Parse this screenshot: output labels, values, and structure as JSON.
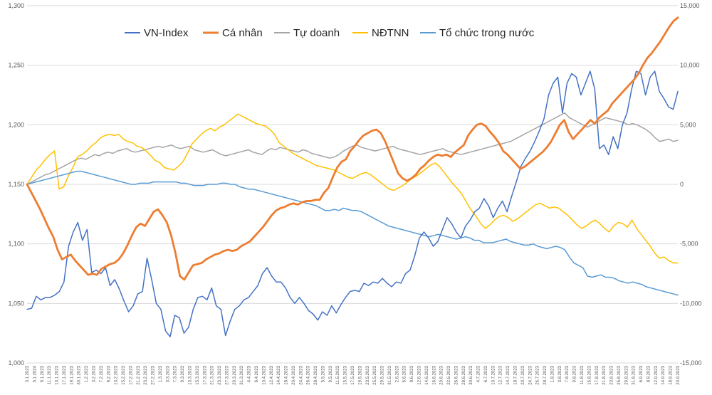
{
  "chart_data": {
    "type": "line",
    "left_axis": {
      "min": 1000,
      "max": 1300,
      "step": 50,
      "ticks": [
        "1,000",
        "1,050",
        "1,100",
        "1,150",
        "1,200",
        "1,250",
        "1,300"
      ]
    },
    "right_axis": {
      "min": -15000,
      "max": 15000,
      "step": 5000,
      "ticks": [
        "-15,000",
        "-10,000",
        "-5,000",
        "0",
        "5,000",
        "10,000",
        "15,000"
      ]
    },
    "grid": "horizontal",
    "legend_position": "top",
    "x_labels": [
      "3.1.2023",
      "5.1.2024",
      "9.1.2023",
      "11.1.2023",
      "13.1.2023",
      "17.1.2023",
      "19.1.2023",
      "30.1.2023",
      "1.2.2023",
      "3.2.2023",
      "7.2.2023",
      "9.2.2023",
      "13.2.2023",
      "15.2.2023",
      "17.2.2023",
      "21.2.2023",
      "23.2.2023",
      "27.2.2023",
      "1.3.2023",
      "3.3.2023",
      "7.3.2023",
      "9.3.2023",
      "13.3.2023",
      "15.3.2023",
      "17.3.2023",
      "21.3.2023",
      "23.3.2023",
      "27.3.2023",
      "29.3.2023",
      "31.3.2023",
      "4.4.2023",
      "6.4.2023",
      "10.4.2023",
      "12.4.2023",
      "14.4.2023",
      "18.4.2023",
      "20.4.2023",
      "24.4.2023",
      "26.4.2023",
      "28.4.2023",
      "5.5.2023",
      "9.5.2023",
      "11.5.2023",
      "15.5.2023",
      "17.5.2023",
      "19.5.2023",
      "23.5.2023",
      "25.5.2023",
      "29.5.2023",
      "31.5.2023",
      "2.6.2023",
      "6.6.2023",
      "8.6.2023",
      "12.6.2023",
      "14.6.2023",
      "16.6.2023",
      "20.6.2023",
      "22.6.2023",
      "26.6.2023",
      "28.6.2023",
      "30.6.2023",
      "4.7.2023",
      "6.7.2023",
      "10.7.2023",
      "12.7.2023",
      "14.7.2023",
      "18.7.2023",
      "20.7.2023",
      "24.7.2023",
      "26.7.2023",
      "28.7.2023",
      "1.8.2023",
      "3.8.2023",
      "7.8.2023",
      "9.8.2023",
      "11.8.2023",
      "15.8.2023",
      "17.8.2023",
      "21.8.2023",
      "23.8.2023",
      "25.8.2023",
      "29.8.2023",
      "31.8.2023",
      "6.9.2023",
      "8.9.2023",
      "12.9.2023",
      "14.9.2023",
      "18.9.2023",
      "20.9.2023"
    ],
    "series": [
      {
        "name": "VN-Index",
        "axis": "left",
        "color": "#4472c4",
        "width": 1.5,
        "values": [
          1045,
          1046,
          1056,
          1053,
          1055,
          1055,
          1057,
          1060,
          1068,
          1098,
          1110,
          1118,
          1103,
          1112,
          1076,
          1078,
          1075,
          1080,
          1065,
          1070,
          1062,
          1052,
          1043,
          1048,
          1058,
          1060,
          1088,
          1070,
          1050,
          1045,
          1027,
          1022,
          1040,
          1038,
          1025,
          1030,
          1045,
          1055,
          1056,
          1053,
          1063,
          1048,
          1045,
          1023,
          1035,
          1045,
          1048,
          1053,
          1055,
          1060,
          1065,
          1075,
          1080,
          1073,
          1068,
          1068,
          1063,
          1055,
          1050,
          1055,
          1050,
          1044,
          1041,
          1036,
          1043,
          1040,
          1048,
          1042,
          1049,
          1055,
          1060,
          1061,
          1060,
          1067,
          1065,
          1068,
          1067,
          1071,
          1067,
          1064,
          1068,
          1067,
          1075,
          1078,
          1090,
          1105,
          1110,
          1105,
          1098,
          1102,
          1112,
          1122,
          1117,
          1110,
          1105,
          1115,
          1120,
          1127,
          1130,
          1138,
          1132,
          1122,
          1130,
          1136,
          1127,
          1140,
          1152,
          1165,
          1172,
          1178,
          1186,
          1195,
          1205,
          1225,
          1235,
          1240,
          1210,
          1235,
          1243,
          1240,
          1225,
          1235,
          1245,
          1230,
          1180,
          1183,
          1175,
          1190,
          1180,
          1200,
          1210,
          1230,
          1245,
          1243,
          1225,
          1240,
          1245,
          1228,
          1222,
          1215,
          1213,
          1228
        ]
      },
      {
        "name": "Cá nhân",
        "axis": "right",
        "color": "#ed7d31",
        "width": 2.8,
        "values": [
          0,
          -700,
          -1400,
          -2100,
          -2900,
          -3700,
          -4400,
          -5500,
          -6300,
          -6100,
          -5900,
          -6400,
          -6800,
          -7200,
          -7600,
          -7500,
          -7600,
          -7100,
          -6900,
          -6700,
          -6600,
          -6300,
          -5800,
          -5100,
          -4300,
          -3600,
          -3300,
          -3500,
          -2900,
          -2300,
          -2100,
          -2600,
          -3200,
          -4300,
          -5800,
          -7700,
          -8000,
          -7400,
          -6800,
          -6700,
          -6600,
          -6300,
          -6100,
          -5900,
          -5800,
          -5600,
          -5500,
          -5600,
          -5500,
          -5200,
          -5000,
          -4800,
          -4400,
          -4000,
          -3600,
          -3100,
          -2600,
          -2200,
          -2000,
          -1900,
          -1700,
          -1600,
          -1700,
          -1500,
          -1400,
          -1400,
          -1300,
          -1300,
          -700,
          -300,
          600,
          1400,
          1900,
          2100,
          2800,
          3200,
          3700,
          4100,
          4300,
          4500,
          4600,
          4300,
          3600,
          2700,
          1800,
          900,
          500,
          300,
          500,
          800,
          1300,
          1600,
          2000,
          2300,
          2500,
          2400,
          2500,
          2300,
          2700,
          3000,
          3300,
          4100,
          4600,
          5000,
          5100,
          4900,
          4400,
          4000,
          3500,
          2800,
          2500,
          2100,
          1700,
          1300,
          1500,
          1800,
          2100,
          2400,
          2700,
          3100,
          3600,
          4300,
          5000,
          5400,
          4400,
          3800,
          4200,
          4600,
          5000,
          5400,
          5100,
          5600,
          5900,
          6200,
          6800,
          7200,
          7600,
          8000,
          8400,
          8800,
          9300,
          10000,
          10600,
          11000,
          11500,
          12000,
          12600,
          13200,
          13700,
          14000
        ]
      },
      {
        "name": "Tự doanh",
        "axis": "right",
        "color": "#a5a5a5",
        "width": 1.5,
        "values": [
          0,
          200,
          400,
          600,
          800,
          900,
          1100,
          1300,
          1500,
          1700,
          1900,
          2100,
          2200,
          2100,
          2300,
          2500,
          2400,
          2600,
          2700,
          2600,
          2800,
          2900,
          3000,
          2800,
          2700,
          2800,
          2900,
          3000,
          3100,
          3200,
          3100,
          3200,
          3300,
          3100,
          3000,
          3100,
          3200,
          2900,
          2800,
          2700,
          2800,
          2900,
          2700,
          2500,
          2400,
          2500,
          2600,
          2700,
          2800,
          2900,
          2700,
          2600,
          2500,
          2800,
          3000,
          2900,
          3100,
          3000,
          2900,
          2800,
          2700,
          2900,
          2800,
          2600,
          2500,
          2400,
          2300,
          2200,
          2300,
          2500,
          2800,
          3000,
          3200,
          3300,
          3100,
          3000,
          2900,
          2800,
          2900,
          3000,
          3100,
          3200,
          3000,
          2900,
          2800,
          2700,
          2600,
          2500,
          2600,
          2700,
          2800,
          2900,
          3000,
          2800,
          2700,
          2600,
          2500,
          2600,
          2700,
          2800,
          2900,
          3000,
          3100,
          3200,
          3300,
          3400,
          3500,
          3600,
          3800,
          4000,
          4200,
          4400,
          4600,
          4800,
          5000,
          5200,
          5400,
          5600,
          5800,
          6000,
          5600,
          5400,
          5200,
          5000,
          4800,
          5000,
          5200,
          5400,
          5600,
          5500,
          5400,
          5300,
          5200,
          5000,
          5100,
          5000,
          4800,
          4600,
          4300,
          3900,
          3600,
          3700,
          3800,
          3600,
          3700
        ]
      },
      {
        "name": "NĐTNN",
        "axis": "right",
        "color": "#ffc000",
        "width": 1.5,
        "values": [
          0,
          600,
          1200,
          1600,
          2100,
          2500,
          2800,
          -400,
          -200,
          700,
          1400,
          2300,
          2500,
          2800,
          3200,
          3500,
          3900,
          4100,
          4200,
          4100,
          4200,
          3800,
          3600,
          3500,
          3200,
          3100,
          2800,
          2400,
          2000,
          1800,
          1400,
          1300,
          1200,
          1500,
          1900,
          2600,
          3400,
          3800,
          4200,
          4500,
          4700,
          4500,
          4800,
          5000,
          5300,
          5600,
          5900,
          5700,
          5500,
          5300,
          5100,
          5000,
          4900,
          4600,
          4200,
          3500,
          3200,
          2900,
          2600,
          2400,
          2200,
          2000,
          1800,
          1600,
          1500,
          1400,
          1300,
          1200,
          1000,
          800,
          600,
          500,
          700,
          900,
          1000,
          800,
          500,
          200,
          -100,
          -400,
          -500,
          -300,
          -100,
          200,
          500,
          700,
          1000,
          1300,
          1600,
          1800,
          1500,
          1000,
          500,
          0,
          -400,
          -900,
          -1600,
          -2200,
          -2700,
          -3300,
          -3700,
          -3400,
          -3000,
          -2700,
          -2600,
          -2800,
          -3100,
          -2900,
          -2600,
          -2300,
          -2000,
          -1700,
          -1600,
          -1800,
          -2000,
          -1900,
          -2000,
          -2300,
          -2600,
          -3000,
          -3400,
          -3700,
          -3500,
          -3200,
          -3000,
          -3300,
          -3700,
          -4000,
          -3500,
          -3200,
          -3300,
          -3600,
          -3000,
          -3700,
          -4200,
          -4700,
          -5200,
          -5800,
          -6200,
          -6100,
          -6400,
          -6600,
          -6600
        ]
      },
      {
        "name": "Tổ chức trong nước",
        "axis": "right",
        "color": "#5b9bd5",
        "width": 1.5,
        "values": [
          0,
          100,
          200,
          300,
          400,
          500,
          600,
          700,
          800,
          900,
          1000,
          1100,
          1100,
          1000,
          900,
          800,
          700,
          600,
          500,
          400,
          300,
          200,
          100,
          0,
          0,
          100,
          100,
          100,
          200,
          200,
          200,
          200,
          200,
          200,
          100,
          100,
          0,
          -100,
          -100,
          -100,
          0,
          0,
          0,
          100,
          100,
          0,
          0,
          -200,
          -300,
          -400,
          -400,
          -500,
          -600,
          -700,
          -800,
          -900,
          -1000,
          -1100,
          -1200,
          -1300,
          -1400,
          -1500,
          -1600,
          -1700,
          -1800,
          -2000,
          -2200,
          -2200,
          -2100,
          -2200,
          -2000,
          -2100,
          -2200,
          -2200,
          -2300,
          -2500,
          -2700,
          -2900,
          -3100,
          -3300,
          -3500,
          -3600,
          -3700,
          -3800,
          -3900,
          -4000,
          -4100,
          -4200,
          -4300,
          -4400,
          -4300,
          -4200,
          -4300,
          -4400,
          -4500,
          -4600,
          -4500,
          -4400,
          -4500,
          -4700,
          -4700,
          -4900,
          -4900,
          -4900,
          -4800,
          -4700,
          -4600,
          -4800,
          -4900,
          -5000,
          -5100,
          -5100,
          -5000,
          -5200,
          -5300,
          -5400,
          -5300,
          -5200,
          -5300,
          -5500,
          -6100,
          -6600,
          -6800,
          -7000,
          -7700,
          -7800,
          -7700,
          -7600,
          -7800,
          -7800,
          -7900,
          -8100,
          -8200,
          -8300,
          -8200,
          -8300,
          -8400,
          -8600,
          -8700,
          -8800,
          -8900,
          -9000,
          -9100,
          -9200,
          -9300
        ]
      }
    ]
  }
}
